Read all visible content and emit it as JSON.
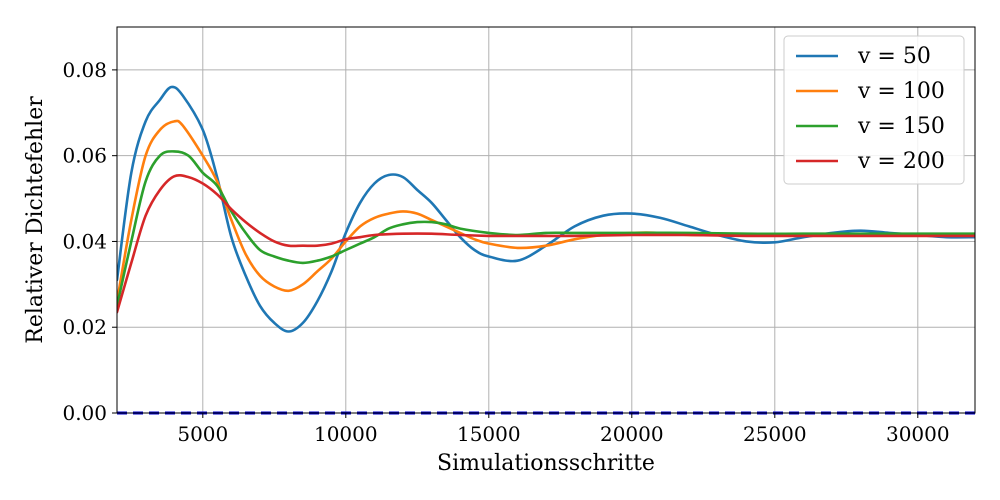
{
  "chart_data": {
    "type": "line",
    "title": "",
    "xlabel": "Simulationsschritte",
    "ylabel": "Relativer Dichtefehler",
    "xlim": [
      2000,
      32000
    ],
    "ylim": [
      0,
      0.09
    ],
    "xticks": [
      5000,
      10000,
      15000,
      20000,
      25000,
      30000
    ],
    "xtick_labels": [
      "5000",
      "10000",
      "15000",
      "20000",
      "25000",
      "30000"
    ],
    "yticks": [
      0.0,
      0.02,
      0.04,
      0.06,
      0.08
    ],
    "ytick_labels": [
      "0.00",
      "0.02",
      "0.04",
      "0.06",
      "0.08"
    ],
    "grid": true,
    "legend_position": "top-right",
    "reference_line": {
      "y": 0.0,
      "color": "#0000cd",
      "style": "dashed"
    },
    "series": [
      {
        "name": "v = 50",
        "color": "#1f77b4",
        "x": [
          2000,
          2500,
          3000,
          3500,
          3900,
          4300,
          5000,
          5500,
          6000,
          6500,
          7000,
          7500,
          8000,
          8500,
          9000,
          9500,
          10000,
          10500,
          11000,
          11500,
          12000,
          12500,
          13000,
          13500,
          14000,
          14500,
          15000,
          16000,
          17000,
          18000,
          19000,
          20000,
          21000,
          22000,
          23000,
          24000,
          25000,
          26000,
          27000,
          28000,
          29000,
          30000,
          31000,
          32000
        ],
        "y": [
          0.031,
          0.056,
          0.068,
          0.073,
          0.076,
          0.074,
          0.066,
          0.055,
          0.041,
          0.032,
          0.025,
          0.021,
          0.019,
          0.021,
          0.026,
          0.033,
          0.042,
          0.049,
          0.0535,
          0.0555,
          0.055,
          0.052,
          0.049,
          0.045,
          0.041,
          0.038,
          0.0365,
          0.0355,
          0.039,
          0.0435,
          0.046,
          0.0465,
          0.0455,
          0.0435,
          0.0415,
          0.04,
          0.0398,
          0.041,
          0.042,
          0.0425,
          0.042,
          0.0415,
          0.041,
          0.041
        ]
      },
      {
        "name": "v = 100",
        "color": "#ff7f0e",
        "x": [
          2000,
          2500,
          3000,
          3500,
          4000,
          4300,
          5000,
          5500,
          6000,
          6500,
          7000,
          7500,
          8000,
          8500,
          9000,
          9500,
          10000,
          10500,
          11000,
          11500,
          12000,
          12500,
          13000,
          13500,
          14000,
          14500,
          15000,
          16000,
          17000,
          18000,
          19000,
          20000,
          21000,
          22000,
          23000,
          24000,
          26000,
          28000,
          30000,
          32000
        ],
        "y": [
          0.026,
          0.045,
          0.06,
          0.066,
          0.068,
          0.067,
          0.06,
          0.054,
          0.045,
          0.037,
          0.032,
          0.0295,
          0.0285,
          0.03,
          0.033,
          0.036,
          0.04,
          0.0435,
          0.0455,
          0.0465,
          0.047,
          0.0465,
          0.045,
          0.0435,
          0.042,
          0.0405,
          0.0395,
          0.0385,
          0.039,
          0.0405,
          0.0415,
          0.042,
          0.042,
          0.0415,
          0.0415,
          0.0415,
          0.0415,
          0.0415,
          0.0415,
          0.0415
        ]
      },
      {
        "name": "v = 150",
        "color": "#2ca02c",
        "x": [
          2000,
          2500,
          3000,
          3500,
          4000,
          4500,
          5000,
          5500,
          6000,
          6500,
          7000,
          7500,
          8000,
          8500,
          9000,
          9500,
          10000,
          10500,
          11000,
          11500,
          12000,
          12500,
          13000,
          13500,
          14000,
          15000,
          16000,
          17000,
          18000,
          19000,
          20000,
          22000,
          24000,
          26000,
          28000,
          30000,
          32000
        ],
        "y": [
          0.025,
          0.04,
          0.054,
          0.06,
          0.061,
          0.06,
          0.056,
          0.053,
          0.047,
          0.042,
          0.038,
          0.0365,
          0.0355,
          0.035,
          0.0355,
          0.0365,
          0.038,
          0.0395,
          0.041,
          0.043,
          0.044,
          0.0445,
          0.0445,
          0.044,
          0.043,
          0.042,
          0.0415,
          0.042,
          0.042,
          0.042,
          0.042,
          0.042,
          0.0418,
          0.0418,
          0.0418,
          0.0418,
          0.0418
        ]
      },
      {
        "name": "v = 200",
        "color": "#d62728",
        "x": [
          2000,
          2500,
          3000,
          3500,
          4000,
          4500,
          5000,
          5500,
          6000,
          6500,
          7000,
          7500,
          8000,
          8500,
          9000,
          9500,
          10000,
          10500,
          11000,
          12000,
          13000,
          14000,
          15000,
          16000,
          18000,
          20000,
          22000,
          24000,
          26000,
          28000,
          30000,
          32000
        ],
        "y": [
          0.0235,
          0.035,
          0.046,
          0.052,
          0.0552,
          0.055,
          0.0535,
          0.051,
          0.0475,
          0.0445,
          0.042,
          0.04,
          0.039,
          0.039,
          0.039,
          0.0395,
          0.0405,
          0.041,
          0.0415,
          0.0418,
          0.0418,
          0.0415,
          0.0413,
          0.0413,
          0.0413,
          0.0415,
          0.0415,
          0.0413,
          0.0413,
          0.0413,
          0.0413,
          0.0413
        ]
      }
    ]
  }
}
